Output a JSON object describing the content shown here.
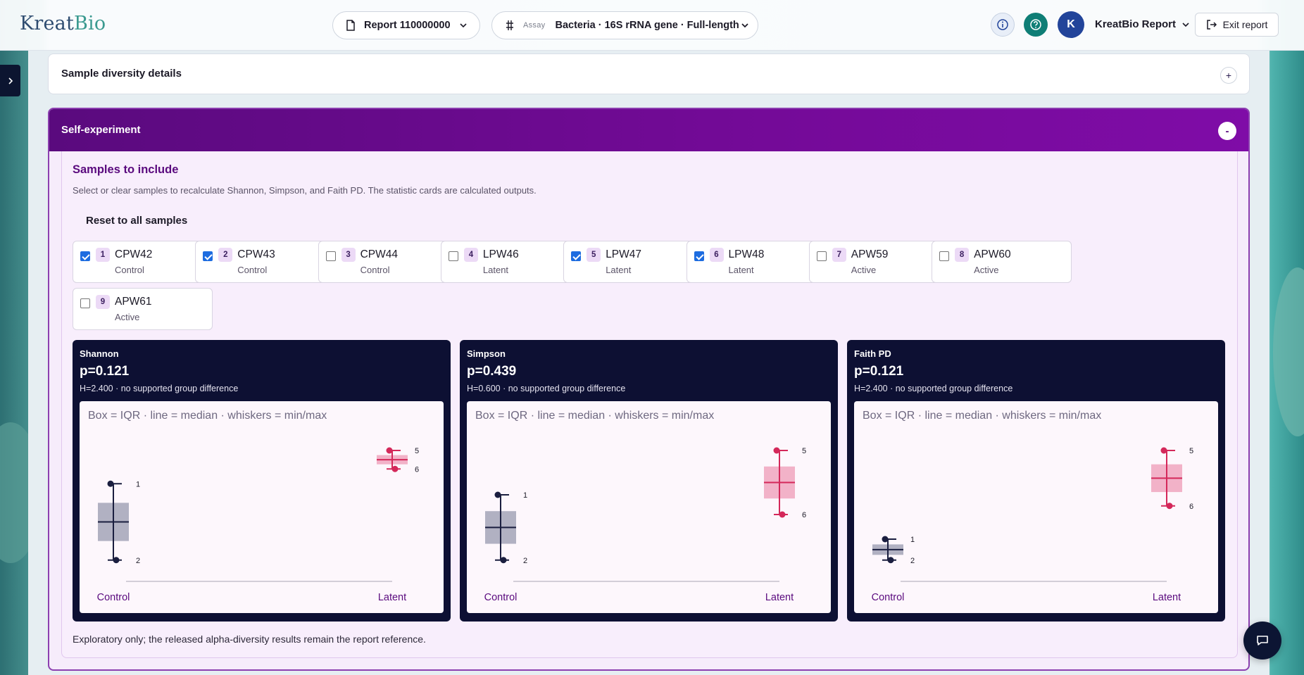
{
  "brand": {
    "part1": "Kreat",
    "part2": "Bio"
  },
  "header": {
    "report_selector": "Report 110000000",
    "assay_label": "Assay",
    "assay_value": "Bacteria · 16S rRNA gene · Full-length",
    "avatar_initial": "K",
    "user_name": "KreatBio Report",
    "exit_label": "Exit report"
  },
  "sections": {
    "diversity_title": "Sample diversity details",
    "diversity_toggle": "+",
    "self_title": "Self-experiment",
    "self_toggle": "-"
  },
  "samples": {
    "title": "Samples to include",
    "description": "Select or clear samples to recalculate Shannon, Simpson, and Faith PD. The statistic cards are calculated outputs.",
    "reset_label": "Reset to all samples",
    "items": [
      {
        "num": "1",
        "name": "CPW42",
        "group": "Control",
        "checked": true
      },
      {
        "num": "2",
        "name": "CPW43",
        "group": "Control",
        "checked": true
      },
      {
        "num": "3",
        "name": "CPW44",
        "group": "Control",
        "checked": false
      },
      {
        "num": "4",
        "name": "LPW46",
        "group": "Latent",
        "checked": false
      },
      {
        "num": "5",
        "name": "LPW47",
        "group": "Latent",
        "checked": true
      },
      {
        "num": "6",
        "name": "LPW48",
        "group": "Latent",
        "checked": true
      },
      {
        "num": "7",
        "name": "APW59",
        "group": "Active",
        "checked": false
      },
      {
        "num": "8",
        "name": "APW60",
        "group": "Active",
        "checked": false
      },
      {
        "num": "9",
        "name": "APW61",
        "group": "Active",
        "checked": false
      }
    ]
  },
  "stats": [
    {
      "name": "Shannon",
      "p": "p=0.121",
      "h": "H=2.400 · no supported group difference",
      "legend": "Box = IQR · line = median · whiskers = min/max"
    },
    {
      "name": "Simpson",
      "p": "p=0.439",
      "h": "H=0.600 · no supported group difference",
      "legend": "Box = IQR · line = median · whiskers = min/max"
    },
    {
      "name": "Faith PD",
      "p": "p=0.121",
      "h": "H=2.400 · no supported group difference",
      "legend": "Box = IQR · line = median · whiskers = min/max"
    }
  ],
  "chart_data": [
    {
      "type": "box",
      "title": "Shannon",
      "categories": [
        "Control",
        "Latent"
      ],
      "colors": {
        "Control": "#1a1e3f",
        "Latent": "#d4285a"
      },
      "ylim": [
        0,
        1
      ],
      "series": [
        {
          "name": "Control",
          "points": [
            {
              "label": "1",
              "value": 0.69
            },
            {
              "label": "2",
              "value": 0.07
            }
          ]
        },
        {
          "name": "Latent",
          "points": [
            {
              "label": "5",
              "value": 0.96
            },
            {
              "label": "6",
              "value": 0.81
            }
          ]
        }
      ]
    },
    {
      "type": "box",
      "title": "Simpson",
      "categories": [
        "Control",
        "Latent"
      ],
      "colors": {
        "Control": "#1a1e3f",
        "Latent": "#d4285a"
      },
      "ylim": [
        0,
        1
      ],
      "series": [
        {
          "name": "Control",
          "points": [
            {
              "label": "1",
              "value": 0.6
            },
            {
              "label": "2",
              "value": 0.07
            }
          ]
        },
        {
          "name": "Latent",
          "points": [
            {
              "label": "5",
              "value": 0.96
            },
            {
              "label": "6",
              "value": 0.44
            }
          ]
        }
      ]
    },
    {
      "type": "box",
      "title": "Faith PD",
      "categories": [
        "Control",
        "Latent"
      ],
      "colors": {
        "Control": "#1a1e3f",
        "Latent": "#d4285a"
      },
      "ylim": [
        0,
        1
      ],
      "series": [
        {
          "name": "Control",
          "points": [
            {
              "label": "1",
              "value": 0.24
            },
            {
              "label": "2",
              "value": 0.07
            }
          ]
        },
        {
          "name": "Latent",
          "points": [
            {
              "label": "5",
              "value": 0.96
            },
            {
              "label": "6",
              "value": 0.51
            }
          ]
        }
      ]
    }
  ],
  "footnote": "Exploratory only; the released alpha-diversity results remain the report reference."
}
